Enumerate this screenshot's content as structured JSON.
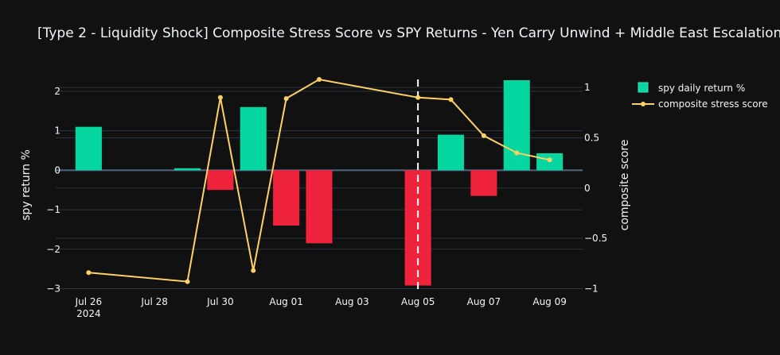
{
  "chart_data": {
    "type": "bar",
    "title": "[Type 2 - Liquidity Shock] Composite Stress Score vs SPY Returns - Yen Carry Unwind + Middle East Escalation",
    "ylabel": "spy return %",
    "y2label": "composite score",
    "ylim": [
      -3.05,
      2.3
    ],
    "y2lim": [
      -1.02,
      1.08
    ],
    "yticks": [
      "−3",
      "−2",
      "−1",
      "0",
      "1",
      "2"
    ],
    "yticks_values": [
      -3,
      -2,
      -1,
      0,
      1,
      2
    ],
    "y2ticks": [
      "−1",
      "−0.5",
      "0",
      "0.5",
      "1"
    ],
    "y2ticks_values": [
      -1,
      -0.5,
      0,
      0.5,
      1
    ],
    "xticks": [
      {
        "date": "2024-07-26",
        "label": "Jul 26",
        "sublabel": "2024"
      },
      {
        "date": "2024-07-28",
        "label": "Jul 28",
        "sublabel": ""
      },
      {
        "date": "2024-07-30",
        "label": "Jul 30",
        "sublabel": ""
      },
      {
        "date": "2024-08-01",
        "label": "Aug 01",
        "sublabel": ""
      },
      {
        "date": "2024-08-03",
        "label": "Aug 03",
        "sublabel": ""
      },
      {
        "date": "2024-08-05",
        "label": "Aug 05",
        "sublabel": ""
      },
      {
        "date": "2024-08-07",
        "label": "Aug 07",
        "sublabel": ""
      },
      {
        "date": "2024-08-09",
        "label": "Aug 09",
        "sublabel": ""
      }
    ],
    "xrange": [
      "2024-07-25",
      "2024-08-10"
    ],
    "event_marker_date": "2024-08-05",
    "series": [
      {
        "name": "spy daily return %",
        "type": "bar",
        "axis": "y",
        "points": [
          {
            "x": "2024-07-26",
            "y": 1.1
          },
          {
            "x": "2024-07-29",
            "y": 0.05
          },
          {
            "x": "2024-07-30",
            "y": -0.5
          },
          {
            "x": "2024-07-31",
            "y": 1.6
          },
          {
            "x": "2024-08-01",
            "y": -1.4
          },
          {
            "x": "2024-08-02",
            "y": -1.85
          },
          {
            "x": "2024-08-05",
            "y": -2.92
          },
          {
            "x": "2024-08-06",
            "y": 0.9
          },
          {
            "x": "2024-08-07",
            "y": -0.65
          },
          {
            "x": "2024-08-08",
            "y": 2.28
          },
          {
            "x": "2024-08-09",
            "y": 0.43
          }
        ]
      },
      {
        "name": "composite stress score",
        "type": "line",
        "axis": "y2",
        "points": [
          {
            "x": "2024-07-26",
            "y": -0.84
          },
          {
            "x": "2024-07-29",
            "y": -0.93
          },
          {
            "x": "2024-07-30",
            "y": 0.9
          },
          {
            "x": "2024-07-31",
            "y": -0.82
          },
          {
            "x": "2024-08-01",
            "y": 0.89
          },
          {
            "x": "2024-08-02",
            "y": 1.08
          },
          {
            "x": "2024-08-05",
            "y": 0.9
          },
          {
            "x": "2024-08-06",
            "y": 0.88
          },
          {
            "x": "2024-08-07",
            "y": 0.52
          },
          {
            "x": "2024-08-08",
            "y": 0.35
          },
          {
            "x": "2024-08-09",
            "y": 0.28
          }
        ]
      }
    ],
    "colors": {
      "positive": "#06d6a0",
      "negative": "#ef233c",
      "line": "#ffd166",
      "grid": "#283442",
      "background": "#111111"
    },
    "grid": true,
    "legend": "top-right"
  }
}
